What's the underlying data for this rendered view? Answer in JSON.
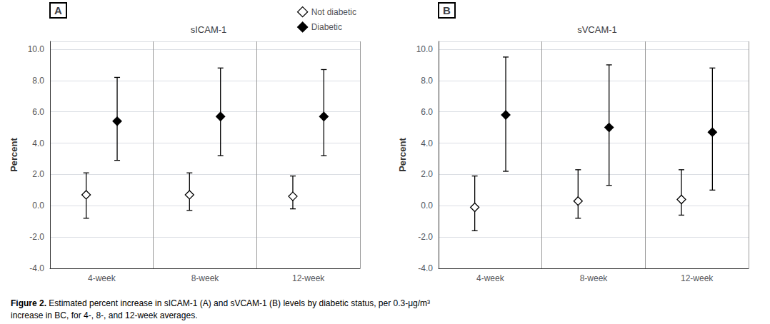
{
  "chart_data": [
    {
      "type": "scatter",
      "title": "sICAM-1",
      "panel_label": "A",
      "categories": [
        "4-week",
        "8-week",
        "12-week"
      ],
      "ylabel": "Percent",
      "ylim": [
        -4.0,
        10.5
      ],
      "yticks": [
        {
          "value": -4.0,
          "label": "-4.0"
        },
        {
          "value": -2.0,
          "label": "-2.0"
        },
        {
          "value": 0.0,
          "label": "0.0"
        },
        {
          "value": 2.0,
          "label": "2.0"
        },
        {
          "value": 4.0,
          "label": "4.0"
        },
        {
          "value": 6.0,
          "label": "6.0"
        },
        {
          "value": 8.0,
          "label": "8.0"
        },
        {
          "value": 10.0,
          "label": "10.0"
        }
      ],
      "grid": true,
      "legend": "upper right",
      "series": [
        {
          "name": "Not diabetic",
          "color": "#ffffff",
          "marker": "diamond",
          "values": [
            0.7,
            0.7,
            0.6
          ],
          "ci_lower": [
            -0.8,
            -0.3,
            -0.2
          ],
          "ci_upper": [
            2.1,
            2.1,
            1.9
          ]
        },
        {
          "name": "Diabetic",
          "color": "#000000",
          "marker": "diamond",
          "values": [
            5.4,
            5.7,
            5.7
          ],
          "ci_lower": [
            2.9,
            3.2,
            3.2
          ],
          "ci_upper": [
            8.2,
            8.8,
            8.7
          ]
        }
      ]
    },
    {
      "type": "scatter",
      "title": "sVCAM-1",
      "panel_label": "B",
      "categories": [
        "4-week",
        "8-week",
        "12-week"
      ],
      "ylabel": "Percent",
      "ylim": [
        -4.0,
        10.5
      ],
      "yticks": [
        {
          "value": -4.0,
          "label": "-4.0"
        },
        {
          "value": -2.0,
          "label": "-2.0"
        },
        {
          "value": 0.0,
          "label": "0.0"
        },
        {
          "value": 2.0,
          "label": "2.0"
        },
        {
          "value": 4.0,
          "label": "4.0"
        },
        {
          "value": 6.0,
          "label": "6.0"
        },
        {
          "value": 8.0,
          "label": "8.0"
        },
        {
          "value": 10.0,
          "label": "10.0"
        }
      ],
      "grid": true,
      "series": [
        {
          "name": "Not diabetic",
          "color": "#ffffff",
          "marker": "diamond",
          "values": [
            -0.1,
            0.3,
            0.4
          ],
          "ci_lower": [
            -1.6,
            -0.8,
            -0.6
          ],
          "ci_upper": [
            1.9,
            2.3,
            2.3
          ]
        },
        {
          "name": "Diabetic",
          "color": "#000000",
          "marker": "diamond",
          "values": [
            5.8,
            5.0,
            4.7
          ],
          "ci_lower": [
            2.2,
            1.3,
            1.0
          ],
          "ci_upper": [
            9.5,
            9.0,
            8.8
          ]
        }
      ]
    }
  ],
  "caption_bold": "Figure 2.",
  "caption_normal": " Estimated percent increase in sICAM-1 (​A​) and sVCAM-1 (​B​) levels by diabetic status, per 0.3-μg/m³\nincrease in BC, for 4-, 8-, and 12-week averages."
}
